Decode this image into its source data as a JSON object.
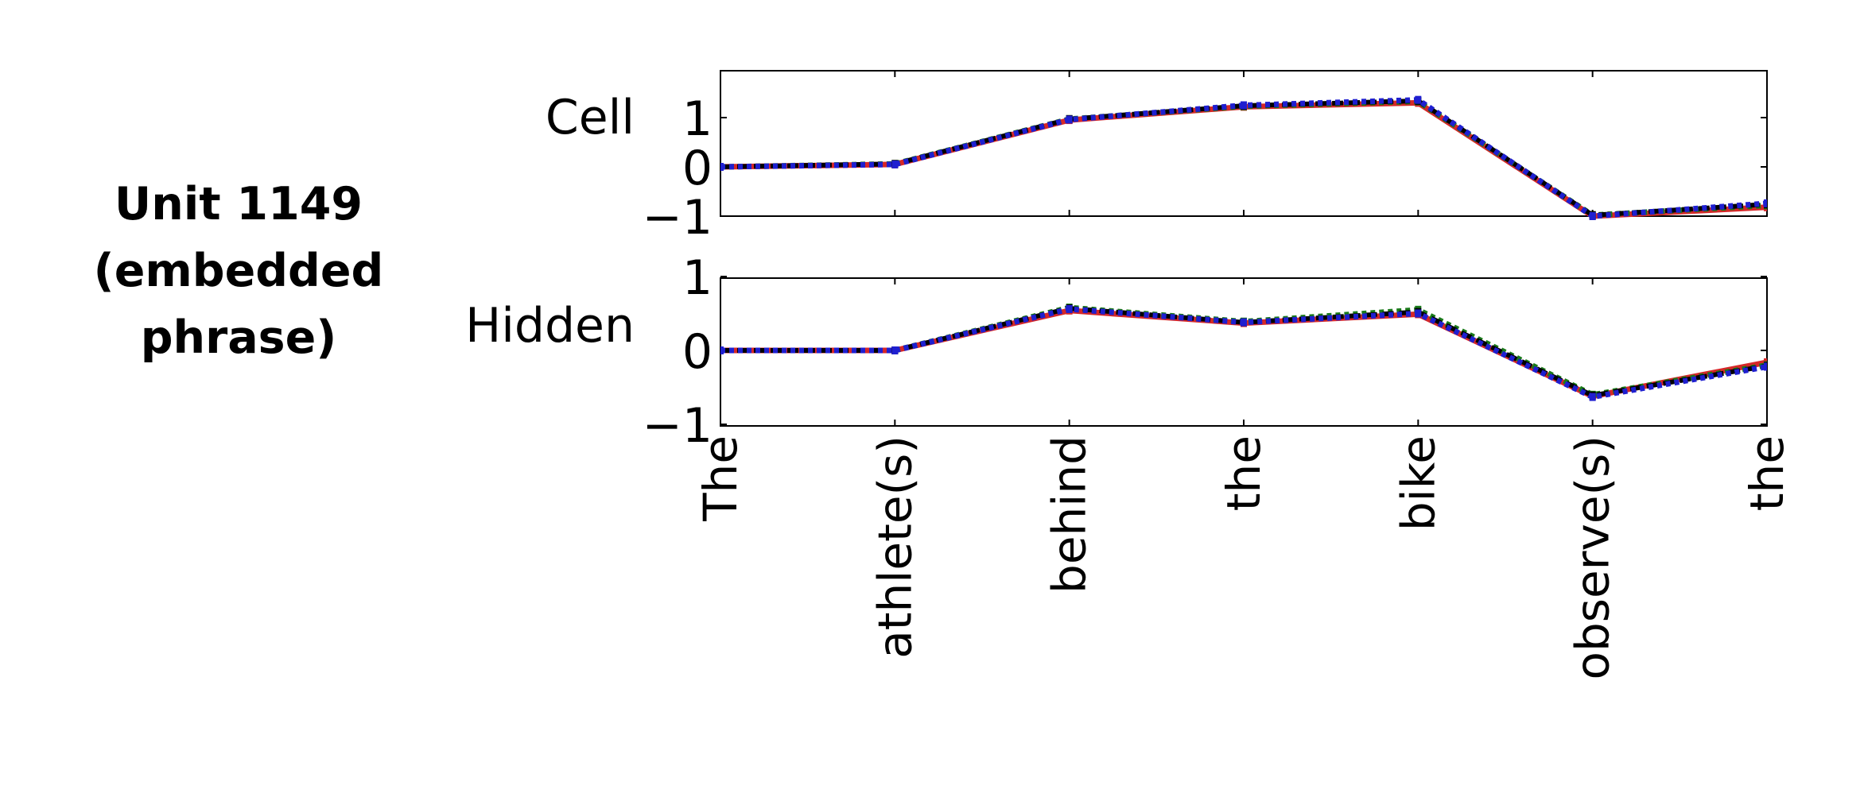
{
  "figure": {
    "title_lines": [
      "Unit 1149",
      "(embedded",
      "phrase)"
    ]
  },
  "colors": {
    "red_series": "#d62728",
    "green_series": "#1a7a1a",
    "blue_series": "#1f1fd0",
    "black_series": "#000000",
    "axes": "#000000"
  },
  "chart_data": [
    {
      "type": "line",
      "title": "Cell",
      "xlabel": "",
      "ylabel": "",
      "categories": [
        "The",
        "athlete(s)",
        "behind",
        "the",
        "bike",
        "observe(s)",
        "the"
      ],
      "ylim": [
        -1,
        2
      ],
      "yticks": [
        -1,
        0,
        1
      ],
      "ytick_labels": [
        "−1",
        "0",
        "1"
      ],
      "grid": false,
      "legend": "none",
      "series": [
        {
          "color": "red",
          "style": "solid",
          "values": [
            0.0,
            0.05,
            0.95,
            1.22,
            1.3,
            -1.0,
            -0.82
          ]
        },
        {
          "color": "green",
          "style": "dotted",
          "values": [
            0.0,
            0.06,
            0.97,
            1.23,
            1.33,
            -0.98,
            -0.78
          ]
        },
        {
          "color": "black",
          "style": "dashed",
          "values": [
            0.0,
            0.06,
            0.97,
            1.24,
            1.34,
            -0.98,
            -0.76
          ]
        },
        {
          "color": "blue",
          "style": "dotted",
          "values": [
            0.0,
            0.05,
            0.96,
            1.25,
            1.36,
            -1.0,
            -0.74
          ]
        }
      ]
    },
    {
      "type": "line",
      "title": "Hidden",
      "xlabel": "",
      "ylabel": "",
      "categories": [
        "The",
        "athlete(s)",
        "behind",
        "the",
        "bike",
        "observe(s)",
        "the"
      ],
      "ylim": [
        -1,
        1
      ],
      "yticks": [
        -1,
        0,
        1
      ],
      "ytick_labels": [
        "−1",
        "0",
        "1"
      ],
      "grid": false,
      "legend": "none",
      "series": [
        {
          "color": "red",
          "style": "solid",
          "values": [
            0.0,
            0.0,
            0.54,
            0.37,
            0.49,
            -0.62,
            -0.16
          ]
        },
        {
          "color": "green",
          "style": "dotted",
          "values": [
            0.0,
            0.0,
            0.58,
            0.39,
            0.55,
            -0.6,
            -0.2
          ]
        },
        {
          "color": "black",
          "style": "dashed",
          "values": [
            0.0,
            0.0,
            0.57,
            0.38,
            0.52,
            -0.61,
            -0.21
          ]
        },
        {
          "color": "blue",
          "style": "dotted",
          "values": [
            0.0,
            0.0,
            0.56,
            0.38,
            0.5,
            -0.63,
            -0.22
          ]
        }
      ]
    }
  ]
}
